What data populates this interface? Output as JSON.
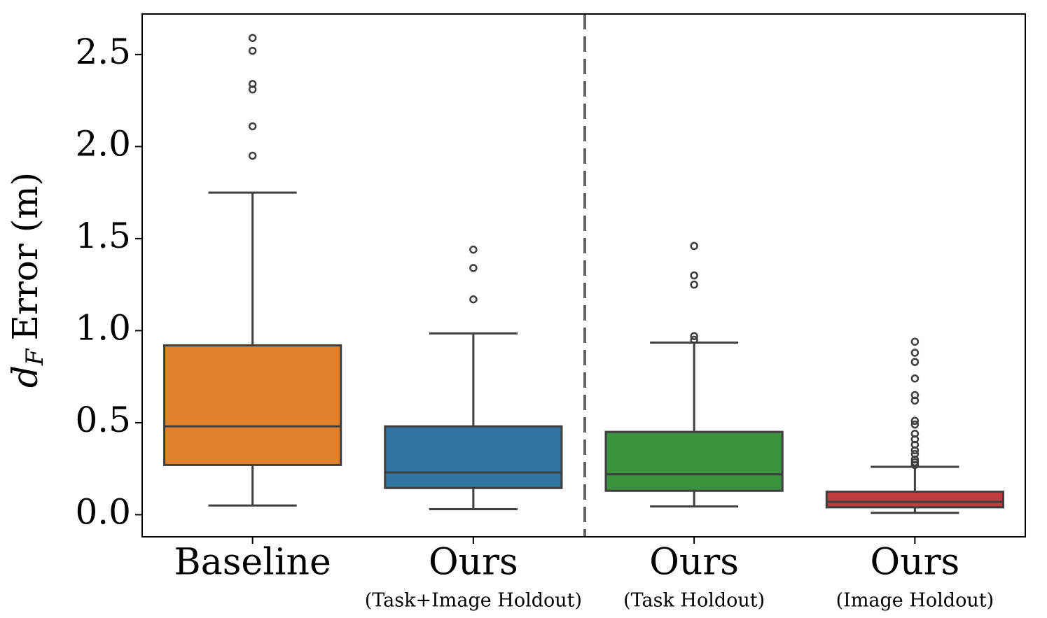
{
  "chart_data": {
    "type": "box",
    "ylabel": {
      "symbol": "d",
      "subscript": "F",
      "text": "Error (m)"
    },
    "ylim": [
      -0.12,
      2.72
    ],
    "yticks": [
      {
        "value": 0,
        "label": "0.0"
      },
      0.5,
      {
        "value": 1,
        "label": "1.0"
      },
      1.5,
      {
        "value": 2,
        "label": "2.0"
      },
      2.5
    ],
    "edge_color": "#3f3f3f",
    "boxes": [
      {
        "category": "Baseline",
        "color": "#e1812c",
        "whislo": 0.05,
        "q1": 0.27,
        "med": 0.48,
        "q3": 0.92,
        "whishi": 1.75,
        "fliers": [
          2.59,
          2.52,
          2.34,
          2.31,
          2.11,
          1.95
        ]
      },
      {
        "category": "Ours",
        "sublabel": "(Task+Image Holdout)",
        "color": "#3274a1",
        "whislo": 0.03,
        "q1": 0.145,
        "med": 0.23,
        "q3": 0.48,
        "whishi": 0.985,
        "fliers": [
          1.44,
          1.34,
          1.17
        ]
      },
      {
        "category": "Ours",
        "sublabel": "(Task Holdout)",
        "color": "#3a923a",
        "whislo": 0.045,
        "q1": 0.13,
        "med": 0.22,
        "q3": 0.45,
        "whishi": 0.935,
        "fliers": [
          1.46,
          1.3,
          1.25,
          0.97,
          0.95
        ]
      },
      {
        "category": "Ours",
        "sublabel": "(Image Holdout)",
        "color": "#c03d3e",
        "whislo": 0.01,
        "q1": 0.04,
        "med": 0.07,
        "q3": 0.125,
        "whishi": 0.26,
        "fliers": [
          0.94,
          0.88,
          0.83,
          0.74,
          0.65,
          0.62,
          0.51,
          0.49,
          0.44,
          0.41,
          0.38,
          0.35,
          0.33,
          0.3,
          0.285,
          0.27
        ]
      }
    ]
  }
}
